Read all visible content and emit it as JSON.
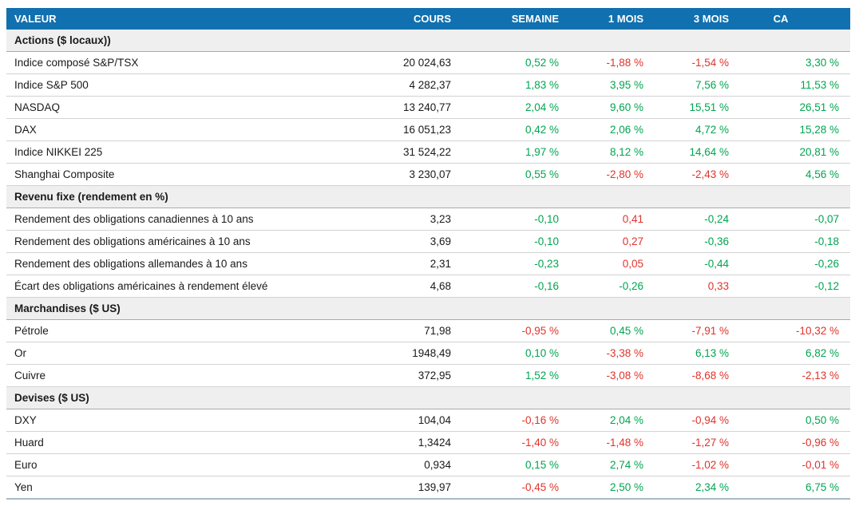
{
  "colors": {
    "header_bg": "#1170AF",
    "header_text": "#FFFFFF",
    "section_bg": "#EFEFEF",
    "positive_green": "#00A550",
    "negative_red": "#E0332B",
    "body_text": "#1A1A1A"
  },
  "chart_data": {
    "type": "table",
    "columns": [
      "VALEUR",
      "COURS",
      "SEMAINE",
      "1 MOIS",
      "3 MOIS",
      "CA"
    ],
    "sections": [
      {
        "label": "Actions ($ locaux))",
        "rows": [
          {
            "label": "Indice composé S&P/TSX",
            "cours": "20 024,63",
            "values": [
              {
                "text": "0,52 %",
                "color": "green"
              },
              {
                "text": "-1,88 %",
                "color": "red"
              },
              {
                "text": "-1,54 %",
                "color": "red"
              },
              {
                "text": "3,30 %",
                "color": "green"
              }
            ]
          },
          {
            "label": "Indice S&P 500",
            "cours": "4 282,37",
            "values": [
              {
                "text": "1,83 %",
                "color": "green"
              },
              {
                "text": "3,95 %",
                "color": "green"
              },
              {
                "text": "7,56 %",
                "color": "green"
              },
              {
                "text": "11,53 %",
                "color": "green"
              }
            ]
          },
          {
            "label": "NASDAQ",
            "cours": "13 240,77",
            "values": [
              {
                "text": "2,04 %",
                "color": "green"
              },
              {
                "text": "9,60 %",
                "color": "green"
              },
              {
                "text": "15,51 %",
                "color": "green"
              },
              {
                "text": "26,51 %",
                "color": "green"
              }
            ]
          },
          {
            "label": "DAX",
            "cours": "16 051,23",
            "values": [
              {
                "text": "0,42 %",
                "color": "green"
              },
              {
                "text": "2,06 %",
                "color": "green"
              },
              {
                "text": "4,72 %",
                "color": "green"
              },
              {
                "text": "15,28 %",
                "color": "green"
              }
            ]
          },
          {
            "label": "Indice NIKKEI 225",
            "cours": "31 524,22",
            "values": [
              {
                "text": "1,97 %",
                "color": "green"
              },
              {
                "text": "8,12 %",
                "color": "green"
              },
              {
                "text": "14,64 %",
                "color": "green"
              },
              {
                "text": "20,81 %",
                "color": "green"
              }
            ]
          },
          {
            "label": "Shanghai Composite",
            "cours": "3 230,07",
            "values": [
              {
                "text": "0,55 %",
                "color": "green"
              },
              {
                "text": "-2,80 %",
                "color": "red"
              },
              {
                "text": "-2,43 %",
                "color": "red"
              },
              {
                "text": "4,56 %",
                "color": "green"
              }
            ]
          }
        ]
      },
      {
        "label": "Revenu fixe (rendement en %)",
        "rows": [
          {
            "label": "Rendement des obligations canadiennes à 10 ans",
            "cours": "3,23",
            "values": [
              {
                "text": "-0,10",
                "color": "green"
              },
              {
                "text": "0,41",
                "color": "red"
              },
              {
                "text": "-0,24",
                "color": "green"
              },
              {
                "text": "-0,07",
                "color": "green"
              }
            ]
          },
          {
            "label": "Rendement des obligations américaines à 10 ans",
            "cours": "3,69",
            "values": [
              {
                "text": "-0,10",
                "color": "green"
              },
              {
                "text": "0,27",
                "color": "red"
              },
              {
                "text": "-0,36",
                "color": "green"
              },
              {
                "text": "-0,18",
                "color": "green"
              }
            ]
          },
          {
            "label": "Rendement des obligations allemandes à 10 ans",
            "cours": "2,31",
            "values": [
              {
                "text": "-0,23",
                "color": "green"
              },
              {
                "text": "0,05",
                "color": "red"
              },
              {
                "text": "-0,44",
                "color": "green"
              },
              {
                "text": "-0,26",
                "color": "green"
              }
            ]
          },
          {
            "label": "Écart des obligations américaines à rendement élevé",
            "cours": "4,68",
            "values": [
              {
                "text": "-0,16",
                "color": "green"
              },
              {
                "text": "-0,26",
                "color": "green"
              },
              {
                "text": "0,33",
                "color": "red"
              },
              {
                "text": "-0,12",
                "color": "green"
              }
            ]
          }
        ]
      },
      {
        "label": "Marchandises ($ US)",
        "rows": [
          {
            "label": "Pétrole",
            "cours": "71,98",
            "values": [
              {
                "text": "-0,95 %",
                "color": "red"
              },
              {
                "text": "0,45 %",
                "color": "green"
              },
              {
                "text": "-7,91 %",
                "color": "red"
              },
              {
                "text": "-10,32 %",
                "color": "red"
              }
            ]
          },
          {
            "label": "Or",
            "cours": "1948,49",
            "values": [
              {
                "text": "0,10 %",
                "color": "green"
              },
              {
                "text": "-3,38 %",
                "color": "red"
              },
              {
                "text": "6,13 %",
                "color": "green"
              },
              {
                "text": "6,82 %",
                "color": "green"
              }
            ]
          },
          {
            "label": "Cuivre",
            "cours": "372,95",
            "values": [
              {
                "text": "1,52 %",
                "color": "green"
              },
              {
                "text": "-3,08 %",
                "color": "red"
              },
              {
                "text": "-8,68 %",
                "color": "red"
              },
              {
                "text": "-2,13 %",
                "color": "red"
              }
            ]
          }
        ]
      },
      {
        "label": "Devises ($ US)",
        "rows": [
          {
            "label": "DXY",
            "cours": "104,04",
            "values": [
              {
                "text": "-0,16 %",
                "color": "red"
              },
              {
                "text": "2,04 %",
                "color": "green"
              },
              {
                "text": "-0,94 %",
                "color": "red"
              },
              {
                "text": "0,50 %",
                "color": "green"
              }
            ]
          },
          {
            "label": "Huard",
            "cours": "1,3424",
            "values": [
              {
                "text": "-1,40 %",
                "color": "red"
              },
              {
                "text": "-1,48 %",
                "color": "red"
              },
              {
                "text": "-1,27 %",
                "color": "red"
              },
              {
                "text": "-0,96 %",
                "color": "red"
              }
            ]
          },
          {
            "label": "Euro",
            "cours": "0,934",
            "values": [
              {
                "text": "0,15 %",
                "color": "green"
              },
              {
                "text": "2,74 %",
                "color": "green"
              },
              {
                "text": "-1,02 %",
                "color": "red"
              },
              {
                "text": "-0,01 %",
                "color": "red"
              }
            ]
          },
          {
            "label": "Yen",
            "cours": "139,97",
            "values": [
              {
                "text": "-0,45 %",
                "color": "red"
              },
              {
                "text": "2,50 %",
                "color": "green"
              },
              {
                "text": "2,34 %",
                "color": "green"
              },
              {
                "text": "6,75 %",
                "color": "green"
              }
            ]
          }
        ]
      }
    ]
  }
}
